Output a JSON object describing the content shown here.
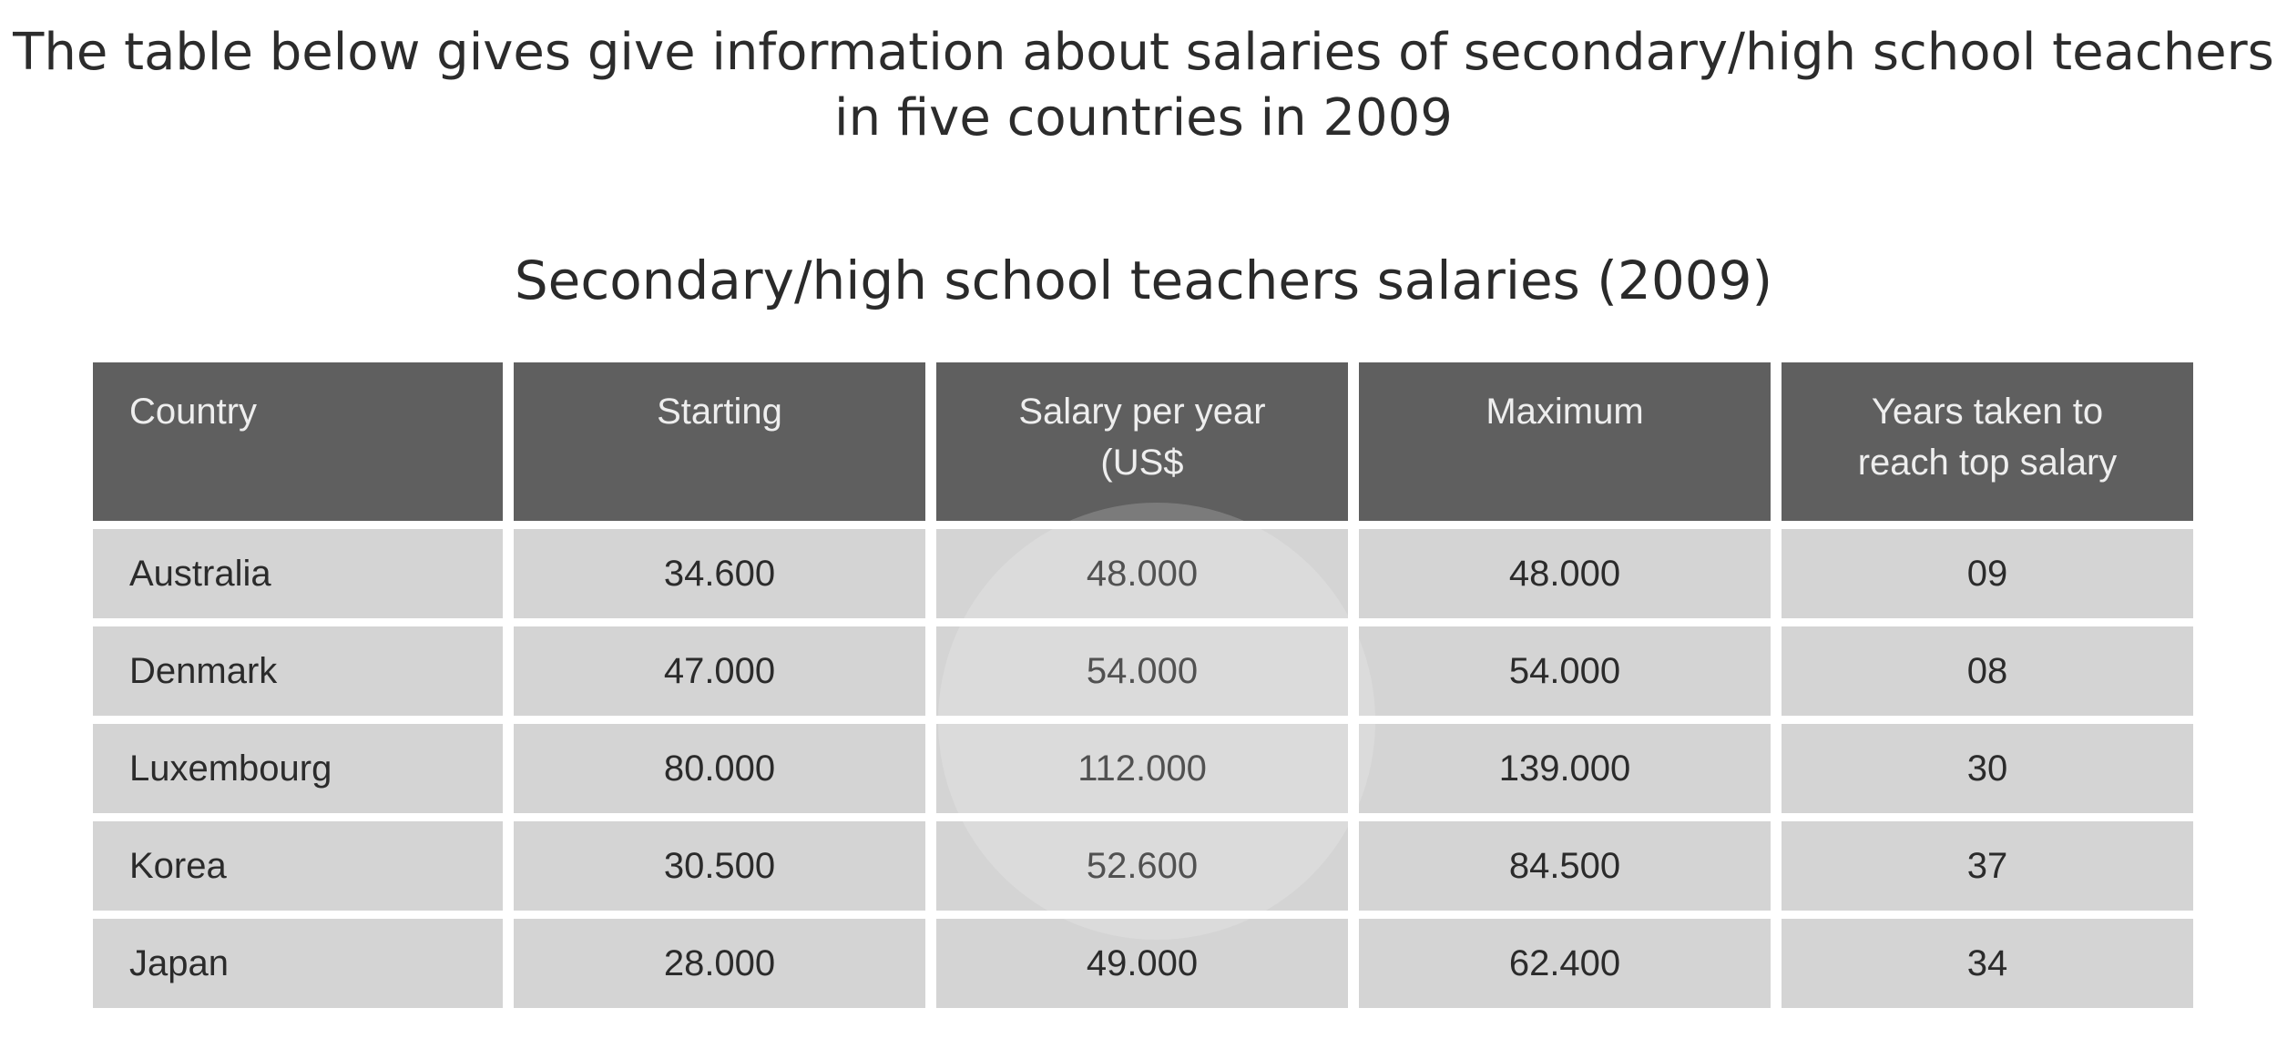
{
  "header": {
    "title_line1": "The table below gives give information about salaries of secondary/high school teachers",
    "title_line2": "in five countries in 2009"
  },
  "chart_data": {
    "type": "table",
    "title": "Secondary/high school teachers salaries (2009)",
    "columns": [
      [
        "Country"
      ],
      [
        "Starting"
      ],
      [
        "Salary per year",
        "(US$"
      ],
      [
        "Maximum"
      ],
      [
        "Years taken to",
        "reach top salary"
      ]
    ],
    "rows": [
      [
        "Australia",
        "34.600",
        "48.000",
        "48.000",
        "09"
      ],
      [
        "Denmark",
        "47.000",
        "54.000",
        "54.000",
        "08"
      ],
      [
        "Luxembourg",
        "80.000",
        "112.000",
        "139.000",
        "30"
      ],
      [
        "Korea",
        "30.500",
        "52.600",
        "84.500",
        "37"
      ],
      [
        "Japan",
        "28.000",
        "49.000",
        "62.400",
        "34"
      ]
    ]
  }
}
